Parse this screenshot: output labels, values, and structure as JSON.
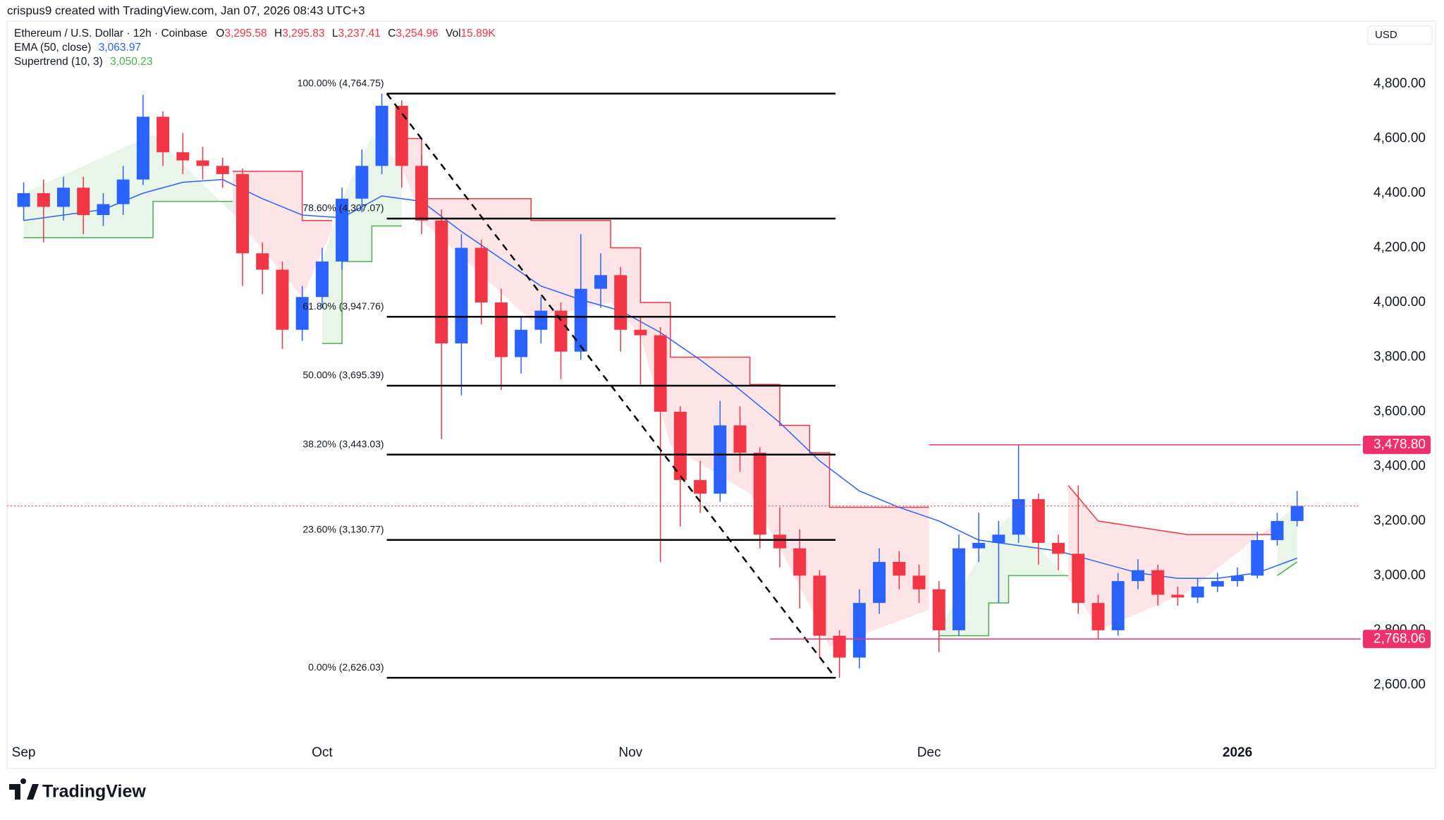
{
  "chart_data": {
    "type": "candlestick",
    "credit": "crispus9 created with TradingView.com, Jan 07, 2026 08:43 UTC+3",
    "symbol": "Ethereum / U.S. Dollar · 12h · Coinbase",
    "ohlc": [
      {
        "key": "O",
        "value": "3,295.58"
      },
      {
        "key": "H",
        "value": "3,295.83"
      },
      {
        "key": "L",
        "value": "3,237.41"
      },
      {
        "key": "C",
        "value": "3,254.96"
      },
      {
        "key": "Vol",
        "value": "15.89K"
      }
    ],
    "currency": "USD",
    "brand": "TradingView",
    "up_color": "#2962ff",
    "down_color": "#f23645",
    "xlim": [
      -1.67,
      134.4
    ],
    "ylim": [
      2299,
      5004
    ],
    "xticks": [
      {
        "value": 0,
        "label": "Sep"
      },
      {
        "value": 30,
        "label": "Oct"
      },
      {
        "value": 61,
        "label": "Nov"
      },
      {
        "value": 91,
        "label": "Dec"
      },
      {
        "value": 122,
        "label": "2026"
      }
    ],
    "yticks": [
      {
        "value": 2600,
        "label": "2,600.00"
      },
      {
        "value": 2800,
        "label": "2,800.00"
      },
      {
        "value": 3000,
        "label": "3,000.00"
      },
      {
        "value": 3200,
        "label": "3,200.00"
      },
      {
        "value": 3400,
        "label": "3,400.00"
      },
      {
        "value": 3600,
        "label": "3,600.00"
      },
      {
        "value": 3800,
        "label": "3,800.00"
      },
      {
        "value": 4000,
        "label": "4,000.00"
      },
      {
        "value": 4200,
        "label": "4,200.00"
      },
      {
        "value": 4400,
        "label": "4,400.00"
      },
      {
        "value": 4600,
        "label": "4,600.00"
      },
      {
        "value": 4800,
        "label": "4,800.00"
      }
    ],
    "x": [
      0,
      2,
      4,
      6,
      8,
      10,
      12,
      14,
      16,
      18,
      20,
      22,
      24,
      26,
      28,
      30,
      32,
      34,
      36,
      38,
      40,
      42,
      44,
      46,
      48,
      50,
      52,
      54,
      56,
      58,
      60,
      62,
      64,
      66,
      68,
      70,
      72,
      74,
      76,
      78,
      80,
      82,
      84,
      86,
      88,
      90,
      92,
      94,
      96,
      98,
      100,
      102,
      104,
      106,
      108,
      110,
      112,
      114,
      116,
      118,
      120,
      122,
      124,
      126,
      128
    ],
    "open": [
      4350,
      4400,
      4350,
      4420,
      4320,
      4360,
      4450,
      4680,
      4550,
      4520,
      4500,
      4470,
      4180,
      4120,
      3900,
      4020,
      4150,
      4380,
      4500,
      4720,
      4500,
      4300,
      3850,
      4200,
      4000,
      3800,
      3900,
      3970,
      3820,
      4050,
      4100,
      3900,
      3880,
      3600,
      3350,
      3300,
      3550,
      3450,
      3150,
      3100,
      3000,
      2780,
      2700,
      2900,
      3050,
      3000,
      2950,
      2800,
      3100,
      3120,
      3150,
      3280,
      3120,
      3080,
      2900,
      2800,
      2980,
      3020,
      2930,
      2920,
      2960,
      2980,
      3000,
      3130,
      3200
    ],
    "high": [
      4440,
      4450,
      4460,
      4460,
      4400,
      4500,
      4760,
      4700,
      4620,
      4570,
      4530,
      4490,
      4220,
      4150,
      4060,
      4200,
      4420,
      4560,
      4764.75,
      4740,
      4540,
      4340,
      4250,
      4230,
      4050,
      3950,
      4020,
      4000,
      4250,
      4180,
      4130,
      3950,
      3910,
      3620,
      3420,
      3640,
      3620,
      3470,
      3250,
      3170,
      3020,
      2800,
      2950,
      3100,
      3090,
      3040,
      2980,
      3150,
      3230,
      3200,
      3478.8,
      3300,
      3150,
      3330,
      2930,
      3010,
      3060,
      3040,
      2960,
      2990,
      3010,
      3030,
      3160,
      3230,
      3310
    ],
    "low": [
      4300,
      4220,
      4300,
      4250,
      4280,
      4320,
      4430,
      4500,
      4470,
      4450,
      4420,
      4060,
      4030,
      3830,
      3860,
      3980,
      4120,
      4330,
      4470,
      4420,
      4250,
      3500,
      3660,
      3920,
      3680,
      3740,
      3850,
      3720,
      3790,
      3980,
      3820,
      3700,
      3050,
      3180,
      3230,
      3270,
      3380,
      3100,
      3030,
      2880,
      2700,
      2626.03,
      2660,
      2860,
      2950,
      2900,
      2720,
      2780,
      3050,
      2900,
      3120,
      3040,
      3020,
      2860,
      2770,
      2780,
      2950,
      2890,
      2890,
      2900,
      2940,
      2960,
      2990,
      3110,
      3180
    ],
    "close": [
      4400,
      4350,
      4420,
      4320,
      4360,
      4450,
      4680,
      4550,
      4520,
      4500,
      4470,
      4180,
      4120,
      3900,
      4020,
      4150,
      4380,
      4500,
      4720,
      4500,
      4300,
      3850,
      4200,
      4000,
      3800,
      3900,
      3970,
      3820,
      4050,
      4100,
      3900,
      3880,
      3600,
      3350,
      3300,
      3550,
      3450,
      3150,
      3100,
      3000,
      2780,
      2700,
      2900,
      3050,
      3000,
      2950,
      2800,
      3100,
      3120,
      3150,
      3280,
      3120,
      3080,
      2900,
      2800,
      2980,
      3020,
      2930,
      2920,
      2960,
      2980,
      3000,
      3130,
      3200,
      3254.96
    ],
    "ema": {
      "name": "EMA (50, close)",
      "last": "3,063.97",
      "color": "#2962ff",
      "x": [
        0,
        4,
        8,
        12,
        16,
        20,
        24,
        28,
        32,
        36,
        40,
        44,
        48,
        52,
        56,
        60,
        64,
        68,
        72,
        76,
        80,
        84,
        88,
        92,
        96,
        100,
        104,
        108,
        112,
        116,
        120,
        124,
        128
      ],
      "values": [
        4300,
        4320,
        4340,
        4400,
        4440,
        4450,
        4380,
        4320,
        4310,
        4390,
        4370,
        4260,
        4160,
        4060,
        4010,
        3970,
        3890,
        3790,
        3680,
        3560,
        3420,
        3310,
        3250,
        3200,
        3130,
        3110,
        3090,
        3050,
        3010,
        2990,
        2990,
        3010,
        3063.97
      ]
    },
    "supertrend": {
      "name": "Supertrend (10, 3)",
      "last": "3,050.23",
      "label_color": "#4caf50",
      "pieces": [
        {
          "color": "#4caf50",
          "x": [
            0,
            13,
            13,
            21
          ],
          "values": [
            4237,
            4237,
            4370,
            4370
          ]
        },
        {
          "color": "#f23645",
          "x": [
            21,
            28,
            28,
            31
          ],
          "values": [
            4480,
            4480,
            4300,
            4300
          ]
        },
        {
          "color": "#4caf50",
          "x": [
            30,
            32,
            32,
            35,
            35,
            38
          ],
          "values": [
            3850,
            3850,
            4150,
            4150,
            4280,
            4280
          ]
        },
        {
          "color": "#f23645",
          "x": [
            38,
            40,
            40,
            51,
            51,
            59,
            59,
            62,
            62,
            65,
            65,
            73,
            73,
            76,
            76,
            79,
            79,
            81,
            81,
            91
          ],
          "values": [
            4600,
            4600,
            4380,
            4380,
            4300,
            4300,
            4200,
            4200,
            4000,
            4000,
            3800,
            3800,
            3700,
            3700,
            3550,
            3550,
            3450,
            3450,
            3250,
            3250
          ]
        },
        {
          "color": "#4caf50",
          "x": [
            92,
            97,
            97,
            99,
            99,
            105
          ],
          "values": [
            2780,
            2780,
            2900,
            2900,
            3000,
            3000
          ]
        },
        {
          "color": "#f23645",
          "x": [
            105,
            108,
            108,
            117,
            117,
            126
          ],
          "values": [
            3330,
            3200,
            3200,
            3150,
            3150,
            3150
          ]
        },
        {
          "color": "#4caf50",
          "x": [
            126,
            128
          ],
          "values": [
            3000,
            3050
          ]
        }
      ]
    },
    "fib": {
      "x": [
        36.5,
        81.6
      ],
      "levels": [
        {
          "label": "100.00% (4,764.75)",
          "value": 4764.75
        },
        {
          "label": "78.60% (4,307.07)",
          "value": 4307.07
        },
        {
          "label": "61.80% (3,947.76)",
          "value": 3947.76
        },
        {
          "label": "50.00% (3,695.39)",
          "value": 3695.39
        },
        {
          "label": "38.20% (3,443.03)",
          "value": 3443.03
        },
        {
          "label": "23.60% (3,130.77)",
          "value": 3130.77
        },
        {
          "label": "0.00% (2,626.03)",
          "value": 2626.03
        }
      ]
    },
    "levels": [
      {
        "value": 3478.8,
        "label": "3,478.80",
        "from": 91,
        "color": "#f0306a"
      },
      {
        "value": 2768.06,
        "label": "2,768.06",
        "from": 75,
        "color": "#f0306a"
      }
    ]
  }
}
